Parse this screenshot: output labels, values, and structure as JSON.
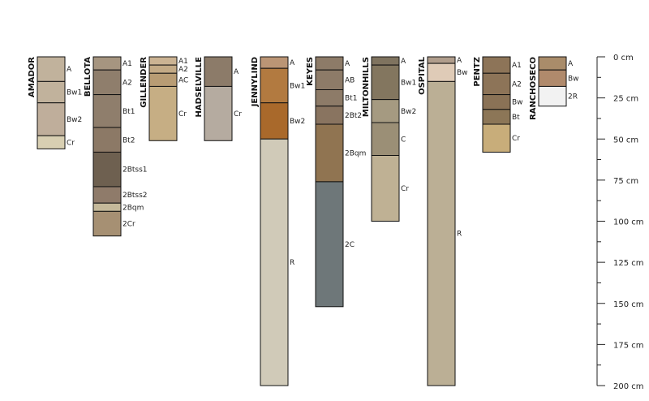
{
  "depth_axis": {
    "unit": "cm",
    "ticks": [
      {
        "value": 0,
        "label": "0 cm"
      },
      {
        "value": 25,
        "label": "25 cm"
      },
      {
        "value": 50,
        "label": "50 cm"
      },
      {
        "value": 75,
        "label": "75 cm"
      },
      {
        "value": 100,
        "label": "100 cm"
      },
      {
        "value": 125,
        "label": "125 cm"
      },
      {
        "value": 150,
        "label": "150 cm"
      },
      {
        "value": 175,
        "label": "175 cm"
      },
      {
        "value": 200,
        "label": "200 cm"
      }
    ]
  },
  "profiles": [
    {
      "name": "AMADOR",
      "horizons": [
        {
          "label": "A",
          "top": 0,
          "bottom": 15,
          "color": "#c1b29c"
        },
        {
          "label": "Bw1",
          "top": 15,
          "bottom": 28,
          "color": "#c1b29c"
        },
        {
          "label": "Bw2",
          "top": 28,
          "bottom": 48,
          "color": "#bfae9b"
        },
        {
          "label": "Cr",
          "top": 48,
          "bottom": 56,
          "color": "#d8cfb2"
        }
      ]
    },
    {
      "name": "BELLOTA",
      "horizons": [
        {
          "label": "A1",
          "top": 0,
          "bottom": 8,
          "color": "#a69580"
        },
        {
          "label": "A2",
          "top": 8,
          "bottom": 23,
          "color": "#8f7e6c"
        },
        {
          "label": "Bt1",
          "top": 23,
          "bottom": 43,
          "color": "#8f7e6c"
        },
        {
          "label": "Bt2",
          "top": 43,
          "bottom": 58,
          "color": "#8c7966"
        },
        {
          "label": "2Btss1",
          "top": 58,
          "bottom": 79,
          "color": "#6e6050"
        },
        {
          "label": "2Btss2",
          "top": 79,
          "bottom": 89,
          "color": "#8f7b6a"
        },
        {
          "label": "2Bqm",
          "top": 89,
          "bottom": 94,
          "color": "#c5b99a"
        },
        {
          "label": "2Cr",
          "top": 94,
          "bottom": 109,
          "color": "#a69073"
        }
      ]
    },
    {
      "name": "GILLENDER",
      "horizons": [
        {
          "label": "A1",
          "top": 0,
          "bottom": 5,
          "color": "#cbb393"
        },
        {
          "label": "A2",
          "top": 5,
          "bottom": 10,
          "color": "#c3aa86"
        },
        {
          "label": "AC",
          "top": 10,
          "bottom": 18,
          "color": "#b89c74"
        },
        {
          "label": "Cr",
          "top": 18,
          "bottom": 51,
          "color": "#c6ae84"
        }
      ]
    },
    {
      "name": "HADSELVILLE",
      "horizons": [
        {
          "label": "A",
          "top": 0,
          "bottom": 18,
          "color": "#8c7b69"
        },
        {
          "label": "Cr",
          "top": 18,
          "bottom": 51,
          "color": "#b5aba0"
        }
      ]
    },
    {
      "name": "JENNYLIND",
      "horizons": [
        {
          "label": "A",
          "top": 0,
          "bottom": 7,
          "color": "#bb9575"
        },
        {
          "label": "Bw1",
          "top": 7,
          "bottom": 28,
          "color": "#b27a40"
        },
        {
          "label": "Bw2",
          "top": 28,
          "bottom": 50,
          "color": "#a9692b"
        },
        {
          "label": "R",
          "top": 50,
          "bottom": 200,
          "color": "#d0cab8"
        }
      ]
    },
    {
      "name": "KEYES",
      "horizons": [
        {
          "label": "A",
          "top": 0,
          "bottom": 8,
          "color": "#8d7b68"
        },
        {
          "label": "AB",
          "top": 8,
          "bottom": 20,
          "color": "#8d7b68"
        },
        {
          "label": "Bt1",
          "top": 20,
          "bottom": 30,
          "color": "#8d7b68"
        },
        {
          "label": "2Bt2",
          "top": 30,
          "bottom": 41,
          "color": "#897460"
        },
        {
          "label": "2Bqm",
          "top": 41,
          "bottom": 76,
          "color": "#907451"
        },
        {
          "label": "2C",
          "top": 76,
          "bottom": 152,
          "color": "#6e7779"
        }
      ]
    },
    {
      "name": "MILTONHILLS",
      "horizons": [
        {
          "label": "A",
          "top": 0,
          "bottom": 5,
          "color": "#7f735f"
        },
        {
          "label": "Bw1",
          "top": 5,
          "bottom": 26,
          "color": "#83765f"
        },
        {
          "label": "Bw2",
          "top": 26,
          "bottom": 40,
          "color": "#a59a81"
        },
        {
          "label": "C",
          "top": 40,
          "bottom": 60,
          "color": "#9b8f76"
        },
        {
          "label": "Cr",
          "top": 60,
          "bottom": 100,
          "color": "#bfb194"
        }
      ]
    },
    {
      "name": "OSPITAL",
      "horizons": [
        {
          "label": "A",
          "top": 0,
          "bottom": 4,
          "color": "#b09d8c"
        },
        {
          "label": "Bw",
          "top": 4,
          "bottom": 15,
          "color": "#dfcbb7"
        },
        {
          "label": "R",
          "top": 15,
          "bottom": 200,
          "color": "#bbaf95"
        }
      ]
    },
    {
      "name": "PENTZ",
      "horizons": [
        {
          "label": "A1",
          "top": 0,
          "bottom": 10,
          "color": "#8d7458"
        },
        {
          "label": "A2",
          "top": 10,
          "bottom": 23,
          "color": "#8d7458"
        },
        {
          "label": "Bw",
          "top": 23,
          "bottom": 32,
          "color": "#8a7256"
        },
        {
          "label": "Bt",
          "top": 32,
          "bottom": 41,
          "color": "#8c7657"
        },
        {
          "label": "Cr",
          "top": 41,
          "bottom": 58,
          "color": "#c8ad7a"
        }
      ]
    },
    {
      "name": "RANCHOSECO",
      "horizons": [
        {
          "label": "A",
          "top": 0,
          "bottom": 8,
          "color": "#a98c6a"
        },
        {
          "label": "Bw",
          "top": 8,
          "bottom": 18,
          "color": "#b08a6c"
        },
        {
          "label": "2R",
          "top": 18,
          "bottom": 30,
          "color": "#f2f2f2"
        }
      ]
    }
  ]
}
